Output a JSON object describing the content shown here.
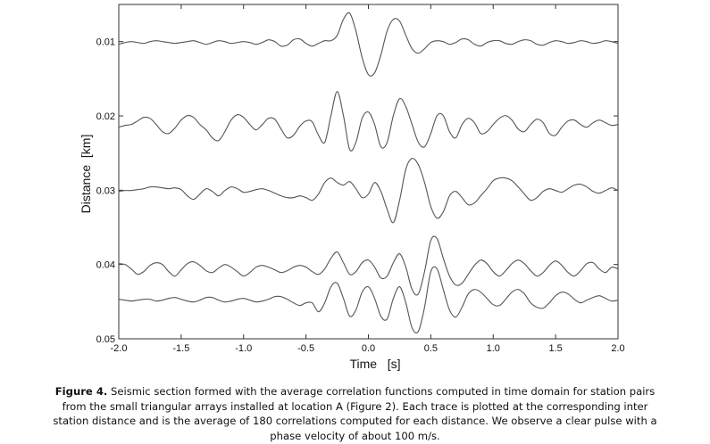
{
  "chart_data": {
    "type": "line",
    "xlabel": "Time   [s]",
    "ylabel": "Distance  [km]",
    "xlim": [
      -2,
      2
    ],
    "ylim": [
      0.005,
      0.05
    ],
    "y_reversed": true,
    "xticks": [
      {
        "value": -2,
        "label": "-2.0"
      },
      {
        "value": -1.5,
        "label": "-1.5"
      },
      {
        "value": -1,
        "label": "-1.0"
      },
      {
        "value": -0.5,
        "label": "-0.5"
      },
      {
        "value": 0,
        "label": "0.0"
      },
      {
        "value": 0.5,
        "label": "0.5"
      },
      {
        "value": 1,
        "label": "1.0"
      },
      {
        "value": 1.5,
        "label": "1.5"
      },
      {
        "value": 2,
        "label": "2.0"
      }
    ],
    "yticks": [
      0.01,
      0.02,
      0.03,
      0.04,
      0.05
    ],
    "grid": false,
    "color": "#555555",
    "x": [
      -2,
      -1.95,
      -1.9,
      -1.85,
      -1.8,
      -1.75,
      -1.7,
      -1.65,
      -1.6,
      -1.55,
      -1.5,
      -1.45,
      -1.4,
      -1.35,
      -1.3,
      -1.25,
      -1.2,
      -1.15,
      -1.1,
      -1.05,
      -1,
      -0.95,
      -0.9,
      -0.85,
      -0.8,
      -0.75,
      -0.7,
      -0.65,
      -0.6,
      -0.55,
      -0.5,
      -0.45,
      -0.4,
      -0.35,
      -0.3,
      -0.25,
      -0.2,
      -0.15,
      -0.1,
      -0.05,
      0,
      0.05,
      0.1,
      0.15,
      0.2,
      0.25,
      0.3,
      0.35,
      0.4,
      0.45,
      0.5,
      0.55,
      0.6,
      0.65,
      0.7,
      0.75,
      0.8,
      0.85,
      0.9,
      0.95,
      1,
      1.05,
      1.1,
      1.15,
      1.2,
      1.25,
      1.3,
      1.35,
      1.4,
      1.45,
      1.5,
      1.55,
      1.6,
      1.65,
      1.7,
      1.75,
      1.8,
      1.85,
      1.9,
      1.95,
      2
    ],
    "series": [
      {
        "values": [
          0.01036,
          0.01012,
          0.01,
          0.01012,
          0.01024,
          0.01,
          0.00988,
          0.01,
          0.01012,
          0.01024,
          0.01012,
          0.01,
          0.00988,
          0.01012,
          0.01036,
          0.01012,
          0.00988,
          0.01,
          0.01024,
          0.01012,
          0.01,
          0.01012,
          0.01036,
          0.01012,
          0.00976,
          0.01,
          0.0106,
          0.01048,
          0.00976,
          0.00964,
          0.01024,
          0.0106,
          0.01024,
          0.00988,
          0.00988,
          0.00916,
          0.007,
          0.00616,
          0.00856,
          0.01216,
          0.01444,
          0.0142,
          0.0118,
          0.00856,
          0.007,
          0.00724,
          0.00916,
          0.01096,
          0.01156,
          0.01096,
          0.01012,
          0.00988,
          0.01,
          0.01036,
          0.01012,
          0.00964,
          0.00976,
          0.01036,
          0.0106,
          0.01012,
          0.00988,
          0.00988,
          0.01024,
          0.01036,
          0.01,
          0.00976,
          0.00988,
          0.01036,
          0.01048,
          0.01012,
          0.00988,
          0.01,
          0.01024,
          0.01012,
          0.00988,
          0.01,
          0.01024,
          0.01012,
          0.00988,
          0.01,
          0.01024
        ]
      },
      {
        "values": [
          0.02152,
          0.02128,
          0.02116,
          0.02068,
          0.0202,
          0.02032,
          0.02116,
          0.02212,
          0.02236,
          0.02164,
          0.02056,
          0.01996,
          0.0202,
          0.02116,
          0.02188,
          0.02296,
          0.02332,
          0.02212,
          0.02056,
          0.01984,
          0.0202,
          0.02116,
          0.02188,
          0.02116,
          0.02032,
          0.02044,
          0.02176,
          0.02296,
          0.0226,
          0.0214,
          0.02068,
          0.0208,
          0.0226,
          0.02356,
          0.01996,
          0.01672,
          0.01996,
          0.02452,
          0.02356,
          0.02032,
          0.01948,
          0.02116,
          0.02416,
          0.02356,
          0.01996,
          0.01768,
          0.01876,
          0.02116,
          0.02356,
          0.02416,
          0.02236,
          0.01996,
          0.01996,
          0.02212,
          0.02296,
          0.02116,
          0.02032,
          0.02092,
          0.02236,
          0.02212,
          0.02116,
          0.02032,
          0.01996,
          0.02056,
          0.02176,
          0.02212,
          0.02116,
          0.02044,
          0.02092,
          0.02236,
          0.0226,
          0.02152,
          0.02068,
          0.02056,
          0.02116,
          0.02152,
          0.02092,
          0.02056,
          0.02092,
          0.02128,
          0.02116
        ]
      },
      {
        "values": [
          0.03016,
          0.03004,
          0.03004,
          0.02992,
          0.0298,
          0.02956,
          0.02956,
          0.02968,
          0.0298,
          0.02968,
          0.02992,
          0.03076,
          0.03124,
          0.03052,
          0.0298,
          0.03016,
          0.03076,
          0.03004,
          0.02956,
          0.0298,
          0.03028,
          0.03016,
          0.02992,
          0.0298,
          0.03004,
          0.0304,
          0.03076,
          0.031,
          0.031,
          0.03076,
          0.031,
          0.03136,
          0.03052,
          0.02896,
          0.02836,
          0.02896,
          0.02932,
          0.02884,
          0.0298,
          0.031,
          0.03052,
          0.02896,
          0.03016,
          0.03256,
          0.03436,
          0.03136,
          0.02716,
          0.02572,
          0.02656,
          0.02896,
          0.0322,
          0.03376,
          0.03292,
          0.03076,
          0.03016,
          0.031,
          0.03196,
          0.03172,
          0.03076,
          0.0298,
          0.02872,
          0.02836,
          0.02836,
          0.02872,
          0.02956,
          0.03052,
          0.03136,
          0.031,
          0.03016,
          0.0298,
          0.03004,
          0.03028,
          0.0298,
          0.02932,
          0.0292,
          0.02956,
          0.03016,
          0.0304,
          0.03004,
          0.02968,
          0.03004
        ]
      },
      {
        "values": [
          0.03988,
          0.04,
          0.0406,
          0.04132,
          0.04096,
          0.04012,
          0.03976,
          0.04,
          0.04096,
          0.04156,
          0.04072,
          0.03988,
          0.03964,
          0.04012,
          0.04084,
          0.04108,
          0.04048,
          0.04,
          0.04036,
          0.04096,
          0.04156,
          0.04108,
          0.04036,
          0.04012,
          0.04036,
          0.04072,
          0.04108,
          0.04084,
          0.04036,
          0.04012,
          0.04036,
          0.04096,
          0.04132,
          0.0406,
          0.03916,
          0.03832,
          0.03976,
          0.04132,
          0.04096,
          0.03976,
          0.0394,
          0.04036,
          0.0418,
          0.04156,
          0.03976,
          0.03856,
          0.04036,
          0.04336,
          0.04396,
          0.04096,
          0.03676,
          0.03652,
          0.03916,
          0.04156,
          0.04276,
          0.04252,
          0.04132,
          0.04012,
          0.0394,
          0.03988,
          0.04096,
          0.04156,
          0.04084,
          0.03988,
          0.0394,
          0.03988,
          0.04084,
          0.04156,
          0.04108,
          0.04012,
          0.03952,
          0.04012,
          0.04108,
          0.04156,
          0.04084,
          0.03988,
          0.03976,
          0.0406,
          0.04108,
          0.04036,
          0.0406
        ]
      },
      {
        "values": [
          0.04468,
          0.0448,
          0.04492,
          0.0448,
          0.04468,
          0.04468,
          0.04492,
          0.0448,
          0.04456,
          0.04444,
          0.04468,
          0.04492,
          0.04504,
          0.0448,
          0.04444,
          0.04444,
          0.0448,
          0.04504,
          0.04492,
          0.04468,
          0.04456,
          0.0448,
          0.04504,
          0.04492,
          0.04468,
          0.04432,
          0.04432,
          0.04468,
          0.04516,
          0.04552,
          0.04516,
          0.04516,
          0.04636,
          0.04516,
          0.043,
          0.04252,
          0.04456,
          0.04696,
          0.04612,
          0.04372,
          0.043,
          0.04456,
          0.04696,
          0.04732,
          0.04456,
          0.043,
          0.04516,
          0.04852,
          0.049,
          0.04576,
          0.04096,
          0.0406,
          0.04336,
          0.04612,
          0.04708,
          0.04576,
          0.04396,
          0.04336,
          0.04372,
          0.04456,
          0.0454,
          0.04552,
          0.04468,
          0.04372,
          0.04336,
          0.04396,
          0.04516,
          0.04576,
          0.04588,
          0.04516,
          0.0442,
          0.04372,
          0.04396,
          0.04468,
          0.04516,
          0.0448,
          0.04444,
          0.0442,
          0.04456,
          0.04492,
          0.0448
        ]
      }
    ]
  },
  "caption_label": "Figure 4.",
  "caption_lines": [
    " Seismic section formed with the average correlation functions computed in time domain for station pairs",
    "from the small triangular arrays installed at location A (Figure 2). Each trace is plotted at the corresponding inter",
    "station distance and is the average of 180 correlations computed for each distance. We observe a clear pulse with a",
    "phase velocity of about 100 m/s."
  ]
}
